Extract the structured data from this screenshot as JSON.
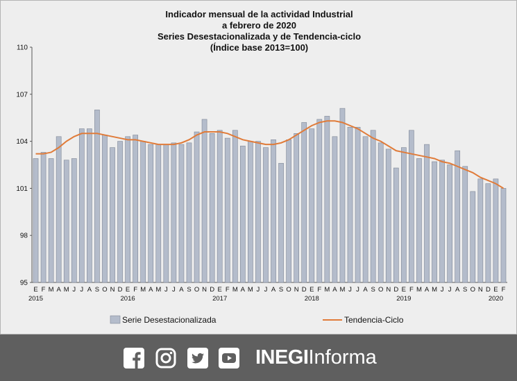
{
  "chart_data": {
    "type": "bar+line",
    "title": [
      "Indicador mensual de la actividad Industrial",
      "a febrero de 2020",
      "Series Desestacionalizada  y de Tendencia-ciclo",
      "(Índice base 2013=100)"
    ],
    "ylim": [
      95,
      110
    ],
    "yticks": [
      95,
      98,
      101,
      104,
      107,
      110
    ],
    "grid": false,
    "legend_position": "bottom",
    "month_labels": [
      "E",
      "F",
      "M",
      "A",
      "M",
      "J",
      "J",
      "A",
      "S",
      "O",
      "N",
      "D",
      "E",
      "F",
      "M",
      "A",
      "M",
      "J",
      "J",
      "A",
      "S",
      "O",
      "N",
      "D",
      "E",
      "F",
      "M",
      "A",
      "M",
      "J",
      "J",
      "A",
      "S",
      "O",
      "N",
      "D",
      "E",
      "F",
      "M",
      "A",
      "M",
      "J",
      "J",
      "A",
      "S",
      "O",
      "N",
      "D",
      "E",
      "F",
      "M",
      "A",
      "M",
      "J",
      "J",
      "A",
      "S",
      "O",
      "N",
      "D",
      "E",
      "F"
    ],
    "year_labels": [
      {
        "label": "2015",
        "index": 0
      },
      {
        "label": "2016",
        "index": 12
      },
      {
        "label": "2017",
        "index": 24
      },
      {
        "label": "2018",
        "index": 36
      },
      {
        "label": "2019",
        "index": 48
      },
      {
        "label": "2020",
        "index": 60
      }
    ],
    "series": [
      {
        "name": "Serie Desestacionalizada",
        "kind": "bar",
        "color": "#b4bccb",
        "values": [
          102.9,
          103.3,
          102.9,
          104.3,
          102.8,
          102.9,
          104.8,
          104.8,
          106.0,
          104.4,
          103.6,
          104.0,
          104.3,
          104.4,
          104.0,
          103.8,
          103.8,
          103.8,
          103.9,
          103.8,
          103.9,
          104.6,
          105.4,
          104.5,
          104.7,
          104.2,
          104.7,
          103.7,
          104.0,
          104.0,
          103.6,
          104.1,
          102.6,
          104.1,
          104.5,
          105.2,
          104.8,
          105.4,
          105.6,
          104.3,
          106.1,
          104.9,
          104.9,
          104.3,
          104.7,
          103.9,
          103.5,
          102.3,
          103.6,
          104.7,
          102.9,
          103.8,
          102.7,
          102.8,
          102.5,
          103.4,
          102.4,
          100.8,
          101.6,
          101.3,
          101.6,
          101.0
        ]
      },
      {
        "name": "Tendencia-Ciclo",
        "kind": "line",
        "color": "#e07b39",
        "values": [
          103.2,
          103.2,
          103.3,
          103.6,
          104.0,
          104.3,
          104.5,
          104.5,
          104.5,
          104.4,
          104.3,
          104.2,
          104.1,
          104.1,
          104.0,
          103.9,
          103.8,
          103.8,
          103.8,
          103.9,
          104.1,
          104.4,
          104.6,
          104.6,
          104.6,
          104.5,
          104.3,
          104.1,
          104.0,
          103.9,
          103.8,
          103.8,
          103.9,
          104.1,
          104.4,
          104.7,
          105.0,
          105.2,
          105.3,
          105.3,
          105.2,
          105.0,
          104.8,
          104.5,
          104.2,
          104.0,
          103.7,
          103.4,
          103.3,
          103.2,
          103.1,
          103.0,
          102.9,
          102.7,
          102.6,
          102.4,
          102.2,
          102.0,
          101.7,
          101.5,
          101.3,
          101.0
        ]
      }
    ]
  },
  "legend": {
    "bar_label": "Serie Desestacionalizada",
    "line_label": "Tendencia-Ciclo"
  },
  "footer": {
    "icons": [
      "facebook-icon",
      "instagram-icon",
      "twitter-icon",
      "youtube-icon"
    ],
    "brand_bold": "INEGI",
    "brand_light": "Informa",
    "background": "#5f5f5f"
  }
}
